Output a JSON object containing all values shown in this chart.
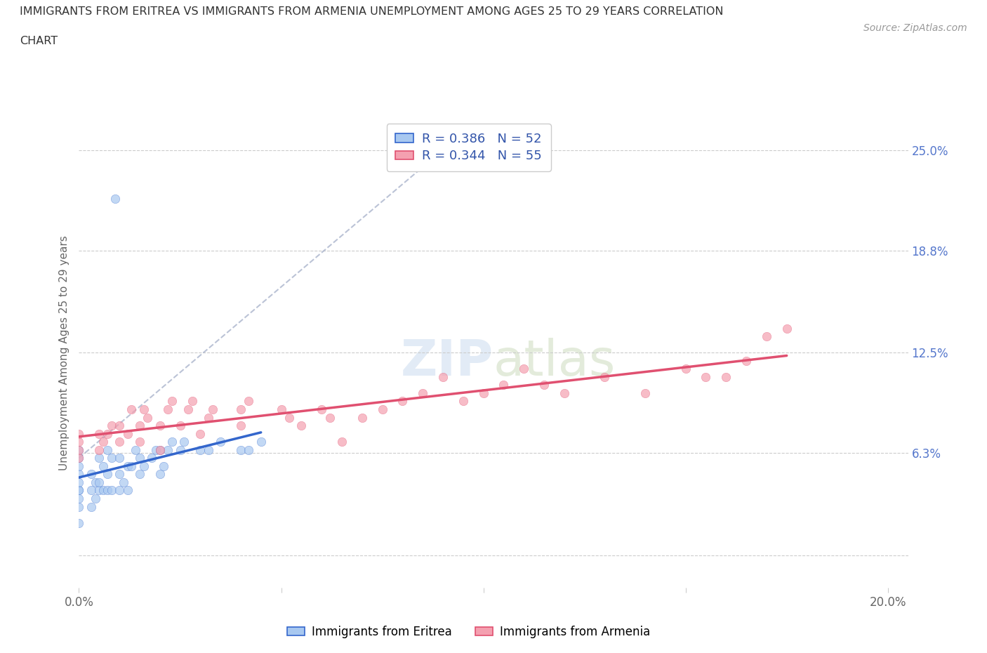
{
  "title_line1": "IMMIGRANTS FROM ERITREA VS IMMIGRANTS FROM ARMENIA UNEMPLOYMENT AMONG AGES 25 TO 29 YEARS CORRELATION",
  "title_line2": "CHART",
  "source": "Source: ZipAtlas.com",
  "ylabel": "Unemployment Among Ages 25 to 29 years",
  "legend_label1": "Immigrants from Eritrea",
  "legend_label2": "Immigrants from Armenia",
  "R1": 0.386,
  "N1": 52,
  "R2": 0.344,
  "N2": 55,
  "xlim": [
    0.0,
    0.205
  ],
  "ylim": [
    -0.02,
    0.27
  ],
  "xticks": [
    0.0,
    0.05,
    0.1,
    0.15,
    0.2
  ],
  "xtick_labels": [
    "0.0%",
    "",
    "",
    "",
    "20.0%"
  ],
  "ytick_positions": [
    0.0,
    0.063,
    0.125,
    0.188,
    0.25
  ],
  "ytick_labels": [
    "",
    "6.3%",
    "12.5%",
    "18.8%",
    "25.0%"
  ],
  "color_eritrea": "#a8c8f0",
  "color_armenia": "#f4a0b0",
  "trendline_eritrea": "#3366cc",
  "trendline_armenia": "#e05070",
  "diagonal_color": "#aab4cc",
  "eritrea_x": [
    0.0,
    0.0,
    0.0,
    0.0,
    0.0,
    0.0,
    0.0,
    0.0,
    0.0,
    0.0,
    0.003,
    0.003,
    0.003,
    0.004,
    0.004,
    0.005,
    0.005,
    0.005,
    0.006,
    0.006,
    0.007,
    0.007,
    0.007,
    0.008,
    0.008,
    0.01,
    0.01,
    0.01,
    0.011,
    0.012,
    0.012,
    0.013,
    0.014,
    0.015,
    0.015,
    0.016,
    0.018,
    0.019,
    0.02,
    0.02,
    0.021,
    0.022,
    0.023,
    0.025,
    0.026,
    0.03,
    0.032,
    0.035,
    0.04,
    0.042,
    0.045,
    0.009
  ],
  "eritrea_y": [
    0.02,
    0.03,
    0.035,
    0.04,
    0.04,
    0.045,
    0.05,
    0.055,
    0.06,
    0.065,
    0.03,
    0.04,
    0.05,
    0.035,
    0.045,
    0.04,
    0.045,
    0.06,
    0.04,
    0.055,
    0.04,
    0.05,
    0.065,
    0.04,
    0.06,
    0.04,
    0.05,
    0.06,
    0.045,
    0.04,
    0.055,
    0.055,
    0.065,
    0.05,
    0.06,
    0.055,
    0.06,
    0.065,
    0.05,
    0.065,
    0.055,
    0.065,
    0.07,
    0.065,
    0.07,
    0.065,
    0.065,
    0.07,
    0.065,
    0.065,
    0.07,
    0.22
  ],
  "armenia_x": [
    0.0,
    0.0,
    0.0,
    0.0,
    0.005,
    0.005,
    0.006,
    0.007,
    0.008,
    0.01,
    0.01,
    0.012,
    0.013,
    0.015,
    0.015,
    0.016,
    0.017,
    0.02,
    0.02,
    0.022,
    0.023,
    0.025,
    0.027,
    0.028,
    0.03,
    0.032,
    0.033,
    0.04,
    0.04,
    0.042,
    0.05,
    0.052,
    0.055,
    0.06,
    0.062,
    0.065,
    0.07,
    0.075,
    0.08,
    0.085,
    0.09,
    0.095,
    0.1,
    0.105,
    0.11,
    0.115,
    0.12,
    0.13,
    0.14,
    0.15,
    0.155,
    0.16,
    0.165,
    0.17,
    0.175
  ],
  "armenia_y": [
    0.06,
    0.065,
    0.07,
    0.075,
    0.065,
    0.075,
    0.07,
    0.075,
    0.08,
    0.07,
    0.08,
    0.075,
    0.09,
    0.07,
    0.08,
    0.09,
    0.085,
    0.065,
    0.08,
    0.09,
    0.095,
    0.08,
    0.09,
    0.095,
    0.075,
    0.085,
    0.09,
    0.08,
    0.09,
    0.095,
    0.09,
    0.085,
    0.08,
    0.09,
    0.085,
    0.07,
    0.085,
    0.09,
    0.095,
    0.1,
    0.11,
    0.095,
    0.1,
    0.105,
    0.115,
    0.105,
    0.1,
    0.11,
    0.1,
    0.115,
    0.11,
    0.11,
    0.12,
    0.135,
    0.14
  ]
}
